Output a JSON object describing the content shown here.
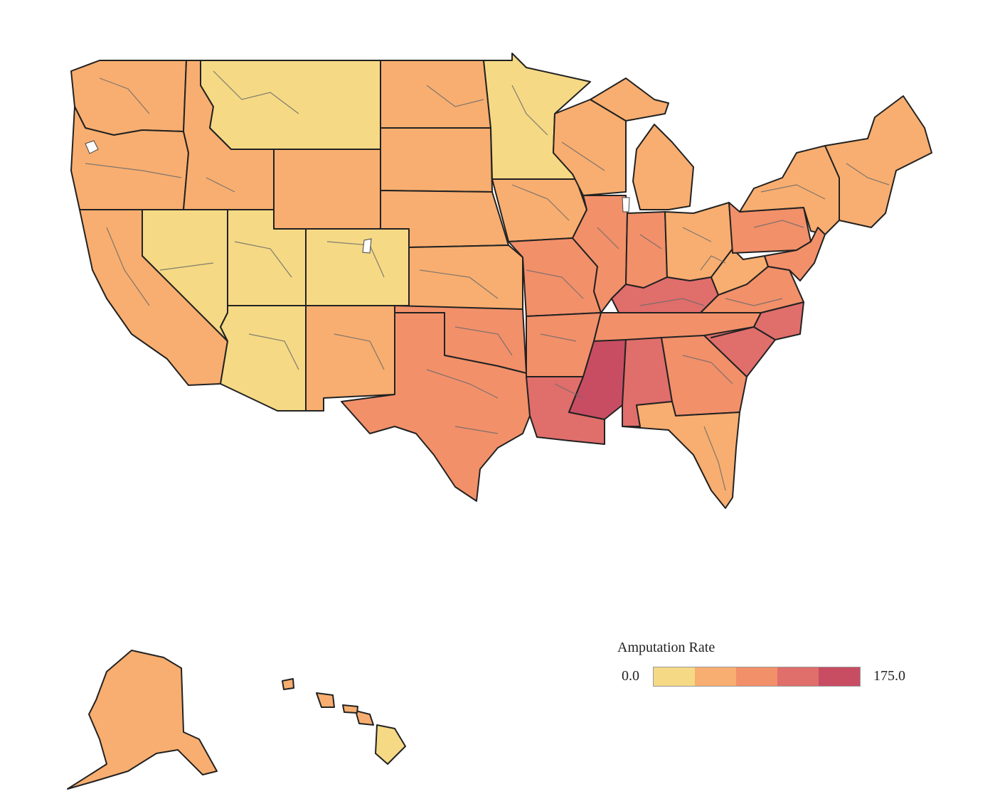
{
  "legend": {
    "title": "Amputation Rate",
    "min_label": "0.0",
    "max_label": "175.0",
    "range": [
      0.0,
      175.0
    ],
    "bins": [
      {
        "color": "#f5d985"
      },
      {
        "color": "#f8ae70"
      },
      {
        "color": "#f2906a"
      },
      {
        "color": "#e06e6b"
      },
      {
        "color": "#c84d63"
      }
    ]
  },
  "colors": {
    "state_border": "#222222",
    "district_border": "#6b6b6b",
    "missing": "#ffffff"
  }
}
